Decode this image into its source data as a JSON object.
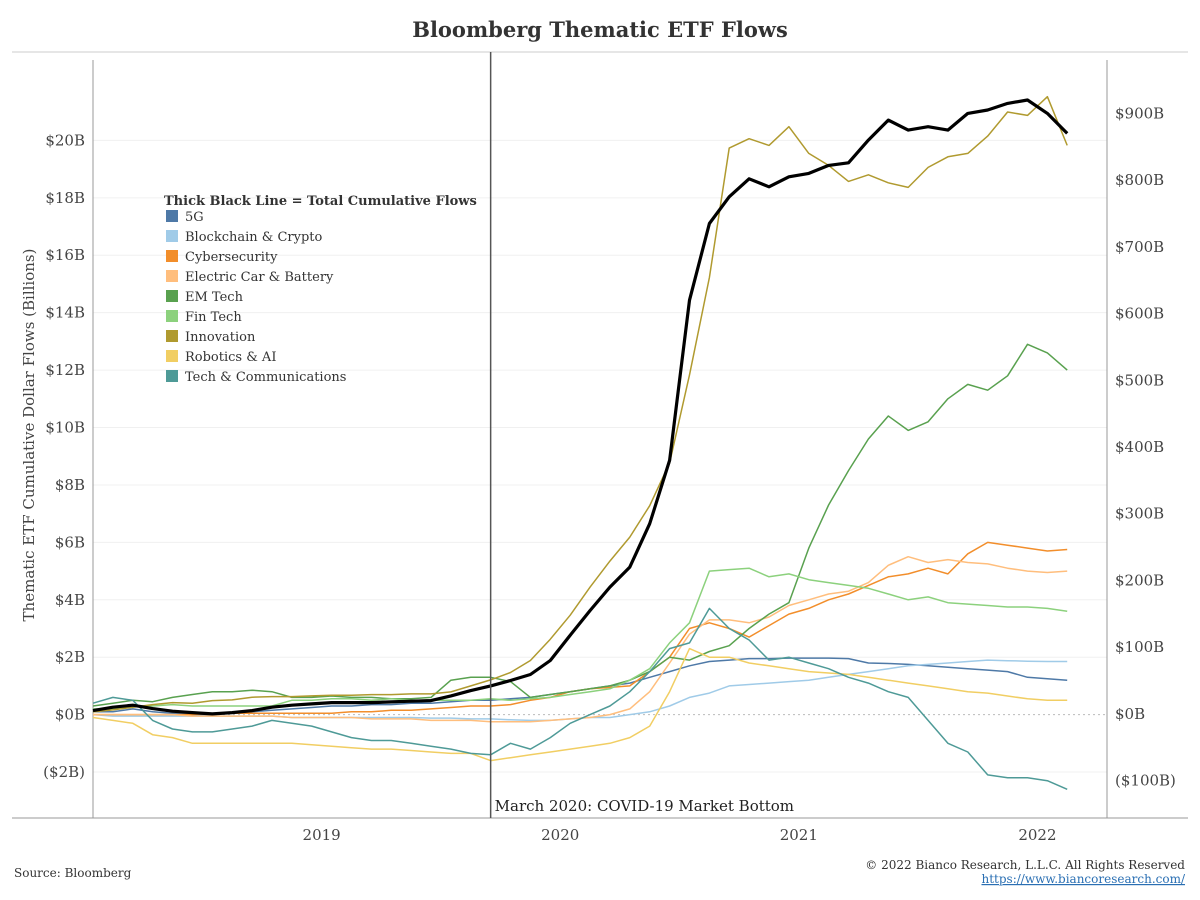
{
  "chart_data": {
    "type": "line",
    "title": "Bloomberg Thematic ETF Flows",
    "ylabel_left": "Thematic ETF Cumulative Dollar Flows (Billions)",
    "ylim_left": [
      -3.6,
      22.8
    ],
    "yticks_left": [
      "($2B)",
      "$0B",
      "$2B",
      "$4B",
      "$6B",
      "$8B",
      "$10B",
      "$12B",
      "$14B",
      "$16B",
      "$18B",
      "$20B"
    ],
    "ylim_right": [
      -156,
      980
    ],
    "yticks_right": [
      "($100B)",
      "$0B",
      "$100B",
      "$200B",
      "$300B",
      "$400B",
      "$500B",
      "$600B",
      "$700B",
      "$800B",
      "$900B"
    ],
    "x_start": "2018-07",
    "x_end": "2022-10",
    "xticks": [
      "2019",
      "2020",
      "2021",
      "2022"
    ],
    "x": [
      "2018-07",
      "2018-08",
      "2018-09",
      "2018-10",
      "2018-11",
      "2018-12",
      "2019-01",
      "2019-02",
      "2019-03",
      "2019-04",
      "2019-05",
      "2019-06",
      "2019-07",
      "2019-08",
      "2019-09",
      "2019-10",
      "2019-11",
      "2019-12",
      "2020-01",
      "2020-02",
      "2020-03",
      "2020-04",
      "2020-05",
      "2020-06",
      "2020-07",
      "2020-08",
      "2020-09",
      "2020-10",
      "2020-11",
      "2020-12",
      "2021-01",
      "2021-02",
      "2021-03",
      "2021-04",
      "2021-05",
      "2021-06",
      "2021-07",
      "2021-08",
      "2021-09",
      "2021-10",
      "2021-11",
      "2021-12",
      "2022-01",
      "2022-02",
      "2022-03",
      "2022-04",
      "2022-05",
      "2022-06",
      "2022-07",
      "2022-08"
    ],
    "legend_title": "Thick Black Line = Total Cumulative Flows",
    "legend_position": "upper-left",
    "grid": "horizontal",
    "series": [
      {
        "name": "5G",
        "color": "#4e79a7",
        "axis": "left",
        "values": [
          0.1,
          0.1,
          0.2,
          0.1,
          0.05,
          0.0,
          0.0,
          0.05,
          0.1,
          0.15,
          0.2,
          0.25,
          0.3,
          0.3,
          0.35,
          0.35,
          0.4,
          0.4,
          0.45,
          0.5,
          0.5,
          0.55,
          0.6,
          0.7,
          0.8,
          0.9,
          1.0,
          1.1,
          1.3,
          1.5,
          1.7,
          1.85,
          1.9,
          1.95,
          1.95,
          1.97,
          1.97,
          1.97,
          1.95,
          1.8,
          1.78,
          1.75,
          1.7,
          1.65,
          1.6,
          1.55,
          1.5,
          1.3,
          1.25,
          1.2
        ]
      },
      {
        "name": "Blockchain & Crypto",
        "color": "#a0cbe8",
        "axis": "left",
        "values": [
          0.0,
          -0.05,
          -0.05,
          -0.05,
          -0.05,
          -0.05,
          -0.05,
          -0.05,
          -0.05,
          -0.05,
          -0.1,
          -0.1,
          -0.1,
          -0.1,
          -0.1,
          -0.1,
          -0.1,
          -0.12,
          -0.12,
          -0.15,
          -0.15,
          -0.18,
          -0.2,
          -0.2,
          -0.15,
          -0.1,
          -0.1,
          0.0,
          0.1,
          0.3,
          0.6,
          0.75,
          1.0,
          1.05,
          1.1,
          1.15,
          1.2,
          1.3,
          1.4,
          1.5,
          1.6,
          1.7,
          1.75,
          1.8,
          1.85,
          1.9,
          1.88,
          1.86,
          1.85,
          1.85
        ]
      },
      {
        "name": "Cybersecurity",
        "color": "#f28e2b",
        "axis": "left",
        "values": [
          0.0,
          0.0,
          0.0,
          0.0,
          0.0,
          0.0,
          0.05,
          0.05,
          0.05,
          0.05,
          0.05,
          0.05,
          0.05,
          0.1,
          0.1,
          0.15,
          0.15,
          0.2,
          0.25,
          0.3,
          0.3,
          0.35,
          0.5,
          0.6,
          0.8,
          0.9,
          0.95,
          1.0,
          1.5,
          2.0,
          3.0,
          3.2,
          3.0,
          2.7,
          3.1,
          3.5,
          3.7,
          4.0,
          4.2,
          4.5,
          4.8,
          4.9,
          5.1,
          4.9,
          5.6,
          6.0,
          5.9,
          5.8,
          5.7,
          5.75
        ]
      },
      {
        "name": "Electric Car & Battery",
        "color": "#ffbe7d",
        "axis": "left",
        "values": [
          0.0,
          0.0,
          0.0,
          0.0,
          0.0,
          -0.05,
          -0.05,
          -0.05,
          -0.05,
          -0.05,
          -0.1,
          -0.1,
          -0.1,
          -0.1,
          -0.15,
          -0.15,
          -0.15,
          -0.2,
          -0.2,
          -0.2,
          -0.25,
          -0.25,
          -0.25,
          -0.2,
          -0.15,
          -0.1,
          0.0,
          0.2,
          0.8,
          1.8,
          2.8,
          3.3,
          3.3,
          3.2,
          3.4,
          3.8,
          4.0,
          4.2,
          4.3,
          4.6,
          5.2,
          5.5,
          5.3,
          5.4,
          5.3,
          5.25,
          5.1,
          5.0,
          4.95,
          5.0
        ]
      },
      {
        "name": "EM Tech",
        "color": "#59a14f",
        "axis": "left",
        "values": [
          0.3,
          0.4,
          0.5,
          0.45,
          0.6,
          0.7,
          0.8,
          0.8,
          0.85,
          0.8,
          0.6,
          0.6,
          0.65,
          0.6,
          0.6,
          0.55,
          0.55,
          0.6,
          1.2,
          1.3,
          1.3,
          1.15,
          0.6,
          0.7,
          0.8,
          0.9,
          1.0,
          1.2,
          1.5,
          2.0,
          1.9,
          2.2,
          2.4,
          3.0,
          3.5,
          3.9,
          5.8,
          7.3,
          8.5,
          9.6,
          10.4,
          9.9,
          10.2,
          11.0,
          11.5,
          11.3,
          11.8,
          12.9,
          12.6,
          12.0
        ]
      },
      {
        "name": "Fin Tech",
        "color": "#8cd17d",
        "axis": "left",
        "values": [
          0.2,
          0.2,
          0.3,
          0.3,
          0.35,
          0.3,
          0.3,
          0.3,
          0.3,
          0.3,
          0.5,
          0.5,
          0.55,
          0.55,
          0.5,
          0.55,
          0.5,
          0.5,
          0.5,
          0.5,
          0.55,
          0.5,
          0.55,
          0.6,
          0.7,
          0.8,
          0.9,
          1.2,
          1.6,
          2.5,
          3.2,
          5.0,
          5.05,
          5.1,
          4.8,
          4.9,
          4.7,
          4.6,
          4.5,
          4.4,
          4.2,
          4.0,
          4.1,
          3.9,
          3.85,
          3.8,
          3.75,
          3.75,
          3.7,
          3.6
        ]
      },
      {
        "name": "Innovation",
        "color": "#b09a2f",
        "axis": "right",
        "values": [
          3,
          6,
          10,
          14,
          17,
          16,
          20,
          21,
          25,
          26,
          26,
          27,
          28,
          28,
          29,
          29,
          30,
          30,
          33,
          42,
          51,
          62,
          80,
          112,
          148,
          190,
          229,
          265,
          312,
          376,
          508,
          654,
          848,
          862,
          852,
          880,
          840,
          822,
          798,
          808,
          796,
          789,
          819,
          835,
          840,
          866,
          902,
          897,
          925,
          852
        ]
      },
      {
        "name": "Robotics & AI",
        "color": "#f1ce63",
        "axis": "left",
        "values": [
          -0.1,
          -0.2,
          -0.3,
          -0.7,
          -0.8,
          -1.0,
          -1.0,
          -1.0,
          -1.0,
          -1.0,
          -1.0,
          -1.05,
          -1.1,
          -1.15,
          -1.2,
          -1.2,
          -1.25,
          -1.3,
          -1.35,
          -1.35,
          -1.6,
          -1.5,
          -1.4,
          -1.3,
          -1.2,
          -1.1,
          -1.0,
          -0.8,
          -0.4,
          0.8,
          2.3,
          2.0,
          2.0,
          1.8,
          1.7,
          1.6,
          1.5,
          1.45,
          1.4,
          1.3,
          1.2,
          1.1,
          1.0,
          0.9,
          0.8,
          0.75,
          0.65,
          0.55,
          0.5,
          0.5
        ]
      },
      {
        "name": "Tech & Communications",
        "color": "#4e9a97",
        "axis": "left",
        "values": [
          0.4,
          0.6,
          0.5,
          -0.2,
          -0.5,
          -0.6,
          -0.6,
          -0.5,
          -0.4,
          -0.2,
          -0.3,
          -0.4,
          -0.6,
          -0.8,
          -0.9,
          -0.9,
          -1.0,
          -1.1,
          -1.2,
          -1.35,
          -1.4,
          -1.0,
          -1.2,
          -0.8,
          -0.3,
          0.0,
          0.3,
          0.8,
          1.5,
          2.3,
          2.5,
          3.7,
          3.0,
          2.6,
          1.9,
          2.0,
          1.8,
          1.6,
          1.3,
          1.1,
          0.8,
          0.6,
          -0.2,
          -1.0,
          -1.3,
          -2.1,
          -2.2,
          -2.2,
          -2.3,
          -2.6
        ]
      },
      {
        "name": "Total Cumulative Flows",
        "color": "#000000",
        "axis": "right",
        "thick": true,
        "values": [
          5,
          10,
          13,
          8,
          4,
          2,
          0,
          2,
          5,
          10,
          13,
          15,
          17,
          17,
          17,
          18,
          19,
          20,
          27,
          35,
          42,
          50,
          59,
          80,
          118,
          155,
          190,
          220,
          285,
          380,
          620,
          735,
          775,
          802,
          790,
          805,
          810,
          822,
          826,
          860,
          890,
          875,
          880,
          875,
          900,
          905,
          915,
          920,
          900,
          870
        ]
      }
    ],
    "annotation": {
      "x": "2020-03",
      "label": "March 2020: COVID-19 Market Bottom"
    }
  },
  "footer": {
    "source": "Source: Bloomberg",
    "copyright": "© 2022 Bianco Research, L.L.C. All Rights Reserved",
    "url": "https://www.biancoresearch.com/"
  }
}
